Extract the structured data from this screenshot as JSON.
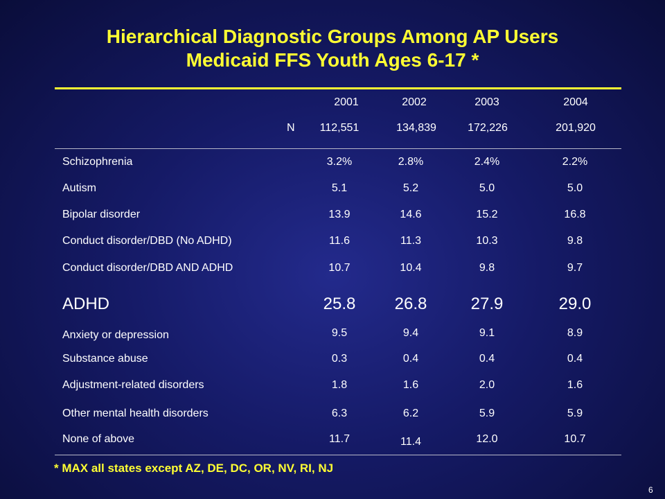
{
  "title": {
    "line1": "Hierarchical Diagnostic Groups Among AP Users",
    "line2": "Medicaid FFS Youth Ages 6-17 *"
  },
  "table": {
    "years": [
      "2001",
      "2002",
      "2003",
      "2004"
    ],
    "n_label": "N",
    "n_values": [
      "112,551",
      "134,839",
      "172,226",
      "201,920"
    ],
    "rows": [
      {
        "label": "Schizophrenia",
        "values": [
          "3.2%",
          "2.8%",
          "2.4%",
          "2.2%"
        ]
      },
      {
        "label": "Autism",
        "values": [
          "5.1",
          "5.2",
          "5.0",
          "5.0"
        ]
      },
      {
        "label": "Bipolar  disorder",
        "values": [
          "13.9",
          "14.6",
          "15.2",
          "16.8"
        ]
      },
      {
        "label": "Conduct disorder/DBD (No ADHD)",
        "values": [
          "11.6",
          "11.3",
          "10.3",
          "9.8"
        ]
      },
      {
        "label": "Conduct disorder/DBD AND ADHD",
        "values": [
          "10.7",
          "10.4",
          "9.8",
          "9.7"
        ]
      },
      {
        "label": "ADHD",
        "values": [
          "25.8",
          "26.8",
          "27.9",
          "29.0"
        ]
      },
      {
        "label": "Anxiety or depression",
        "values": [
          "9.5",
          "9.4",
          "9.1",
          "8.9"
        ]
      },
      {
        "label": "Substance abuse",
        "values": [
          "0.3",
          "0.4",
          "0.4",
          "0.4"
        ]
      },
      {
        "label": "Adjustment-related disorders",
        "values": [
          "1.8",
          "1.6",
          "2.0",
          "1.6"
        ]
      },
      {
        "label": "Other mental health  disorders",
        "values": [
          "6.3",
          "6.2",
          "5.9",
          "5.9"
        ]
      },
      {
        "label": "None of above",
        "values": [
          "11.7",
          "11.4",
          "12.0",
          "10.7"
        ]
      }
    ]
  },
  "footnote": "* MAX all states except AZ, DE, DC, OR, NV, RI, NJ",
  "page_number": "6",
  "colors": {
    "title": "#ffff33",
    "text": "#ffffff",
    "background": "#151a66"
  }
}
